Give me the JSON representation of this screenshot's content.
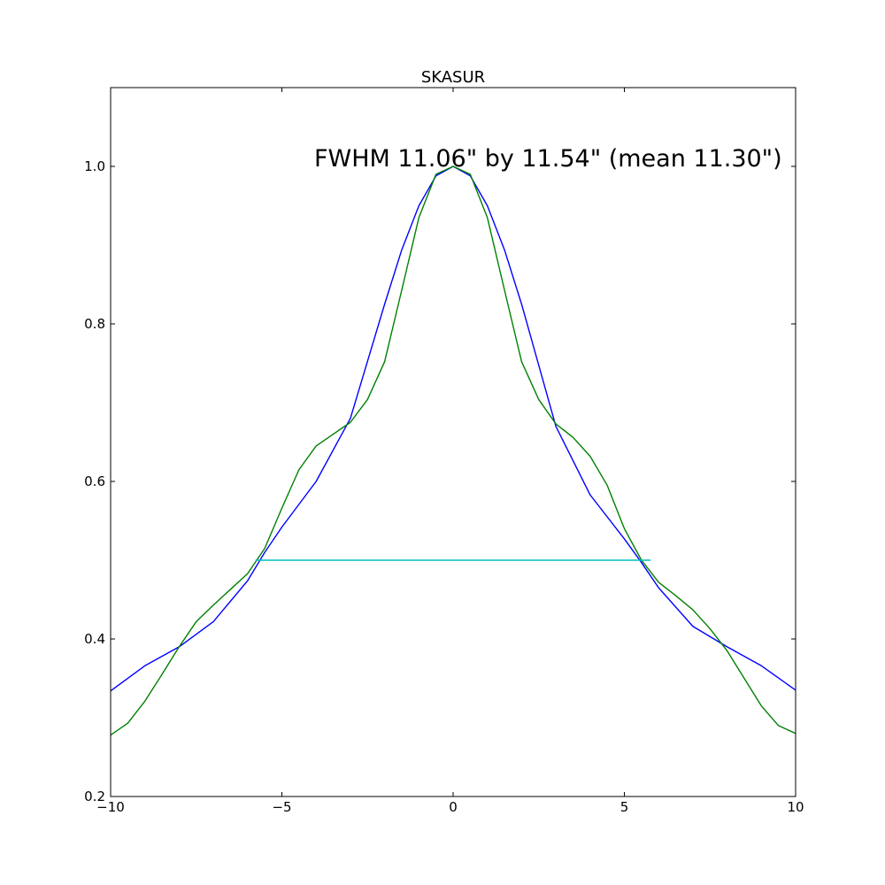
{
  "chart_data": {
    "type": "line",
    "title": "SKASUR",
    "xlabel": "",
    "ylabel": "",
    "xlim": [
      -10,
      10
    ],
    "ylim": [
      0.2,
      1.1
    ],
    "grid": false,
    "legend": "none",
    "xticks": [
      -10,
      -5,
      0,
      5,
      10
    ],
    "xtick_labels": [
      "−10",
      "−5",
      "0",
      "5",
      "10"
    ],
    "yticks": [
      0.2,
      0.4,
      0.6,
      0.8,
      1.0
    ],
    "ytick_labels": [
      "0.2",
      "0.4",
      "0.6",
      "0.8",
      "1.0"
    ],
    "annotation": "FWHM 11.06\" by 11.54\" (mean 11.30\")",
    "series": [
      {
        "color": "#0000ff",
        "x": [
          -10,
          -9,
          -8,
          -7,
          -6,
          -5.5,
          -5,
          -4,
          -3,
          -2,
          -1.5,
          -1,
          -0.5,
          0,
          0.5,
          1,
          1.5,
          2,
          3,
          4,
          5,
          5.5,
          6,
          7,
          8,
          9,
          10
        ],
        "y": [
          0.334,
          0.366,
          0.39,
          0.422,
          0.474,
          0.51,
          0.542,
          0.6,
          0.68,
          0.825,
          0.894,
          0.95,
          0.988,
          1.0,
          0.988,
          0.95,
          0.894,
          0.825,
          0.67,
          0.583,
          0.527,
          0.497,
          0.465,
          0.416,
          0.39,
          0.366,
          0.335
        ]
      },
      {
        "color": "#008000",
        "x": [
          -10,
          -9.5,
          -9,
          -8.5,
          -8,
          -7.5,
          -7,
          -6.5,
          -6,
          -5.5,
          -5,
          -4.5,
          -4,
          -3.5,
          -3,
          -2.5,
          -2,
          -1.5,
          -1,
          -0.5,
          0,
          0.5,
          1,
          1.5,
          2,
          2.5,
          3,
          3.5,
          4,
          4.5,
          5,
          5.5,
          6,
          6.5,
          7,
          7.5,
          8,
          8.5,
          9,
          9.5,
          10
        ],
        "y": [
          0.278,
          0.293,
          0.321,
          0.355,
          0.39,
          0.422,
          0.443,
          0.463,
          0.483,
          0.515,
          0.566,
          0.615,
          0.645,
          0.66,
          0.675,
          0.704,
          0.752,
          0.843,
          0.935,
          0.99,
          1.0,
          0.99,
          0.935,
          0.843,
          0.752,
          0.704,
          0.673,
          0.656,
          0.632,
          0.595,
          0.54,
          0.5,
          0.472,
          0.455,
          0.437,
          0.413,
          0.385,
          0.35,
          0.315,
          0.29,
          0.28
        ]
      },
      {
        "color": "#00bfbf",
        "x": [
          -5.77,
          5.77
        ],
        "y": [
          0.5,
          0.5
        ]
      }
    ]
  }
}
